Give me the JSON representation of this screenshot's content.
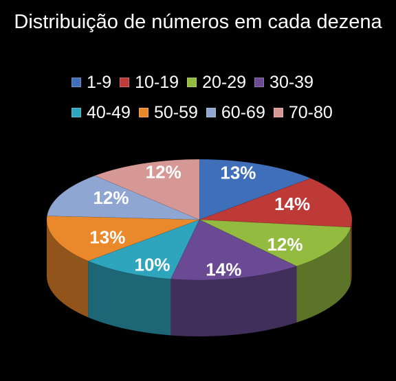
{
  "chart_data": {
    "type": "pie",
    "title": "Distribuição de números em cada dezena",
    "legend_position": "top",
    "categories": [
      "1-9",
      "10-19",
      "20-29",
      "30-39",
      "40-49",
      "50-59",
      "60-69",
      "70-80"
    ],
    "values": [
      13,
      14,
      12,
      14,
      10,
      13,
      12,
      12
    ],
    "labels": [
      "13%",
      "14%",
      "12%",
      "14%",
      "10%",
      "13%",
      "12%",
      "12%"
    ],
    "colors": [
      "#3f6fb8",
      "#bd3a37",
      "#93bb3f",
      "#6a4a93",
      "#2fa5bd",
      "#ea882c",
      "#8ea6d1",
      "#d59894"
    ]
  }
}
